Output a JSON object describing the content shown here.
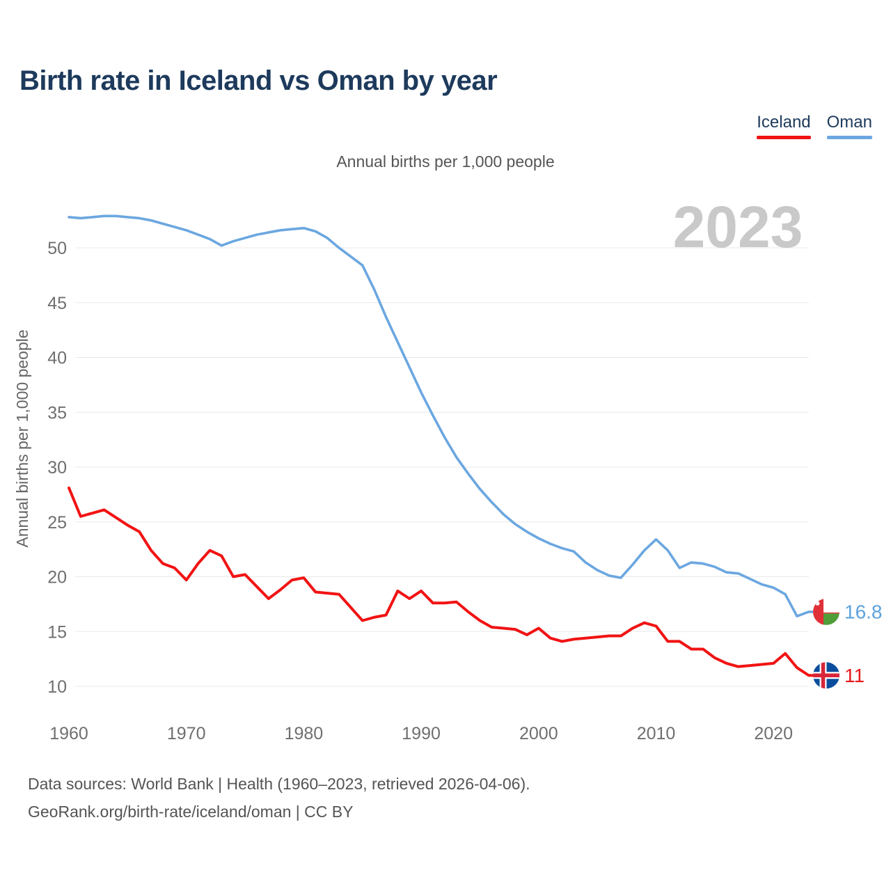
{
  "page": {
    "title": "Birth rate in Iceland vs Oman by year",
    "subtitle": "Annual births per 1,000 people",
    "y_axis_label": "Annual births per 1,000 people",
    "watermark": "2023",
    "footer_line1": "Data sources: World Bank | Health (1960–2023, retrieved 2026-04-06).",
    "footer_line2": "GeoRank.org/birth-rate/iceland/oman | CC BY"
  },
  "legend": {
    "items": [
      {
        "label": "Iceland",
        "color": "#f11313"
      },
      {
        "label": "Oman",
        "color": "#6ba7e0"
      }
    ]
  },
  "colors": {
    "iceland_line": "#f11313",
    "oman_line": "#6ba7e0",
    "iceland_end_label": "#e8181c",
    "oman_end_label": "#5ea2dc",
    "gridline": "#e8e8e8",
    "tick_text": "#6f6f6f",
    "title_text": "#1d3a5c",
    "watermark_text": "#c9c9c9"
  },
  "end_labels": [
    {
      "series": "Oman",
      "text": "16.8",
      "flag": "oman"
    },
    {
      "series": "Iceland",
      "text": "11",
      "flag": "iceland"
    }
  ],
  "chart_data": {
    "type": "line",
    "title": "Birth rate in Iceland vs Oman by year",
    "subtitle": "Annual births per 1,000 people",
    "xlabel": "",
    "ylabel": "Annual births per 1,000 people",
    "grid": "horizontal",
    "legend_position": "top-right",
    "xticks": [
      1960,
      1970,
      1980,
      1990,
      2000,
      2010,
      2020
    ],
    "yticks": [
      10,
      15,
      20,
      25,
      30,
      35,
      40,
      45,
      50
    ],
    "ylim": [
      10,
      54
    ],
    "x": [
      1960,
      1961,
      1962,
      1963,
      1964,
      1965,
      1966,
      1967,
      1968,
      1969,
      1970,
      1971,
      1972,
      1973,
      1974,
      1975,
      1976,
      1977,
      1978,
      1979,
      1980,
      1981,
      1982,
      1983,
      1984,
      1985,
      1986,
      1987,
      1988,
      1989,
      1990,
      1991,
      1992,
      1993,
      1994,
      1995,
      1996,
      1997,
      1998,
      1999,
      2000,
      2001,
      2002,
      2003,
      2004,
      2005,
      2006,
      2007,
      2008,
      2009,
      2010,
      2011,
      2012,
      2013,
      2014,
      2015,
      2016,
      2017,
      2018,
      2019,
      2020,
      2021,
      2022,
      2023
    ],
    "series": [
      {
        "name": "Oman",
        "color": "#6ba7e0",
        "end_value_label": "16.8",
        "values": [
          52.8,
          52.7,
          52.8,
          52.9,
          52.9,
          52.8,
          52.7,
          52.5,
          52.2,
          51.9,
          51.6,
          51.2,
          50.8,
          50.2,
          50.6,
          50.9,
          51.2,
          51.4,
          51.6,
          51.7,
          51.8,
          51.5,
          50.9,
          50.0,
          49.2,
          48.4,
          46.2,
          43.7,
          41.4,
          39.1,
          36.8,
          34.7,
          32.7,
          30.9,
          29.4,
          28.0,
          26.8,
          25.7,
          24.8,
          24.1,
          23.5,
          23.0,
          22.6,
          22.3,
          21.3,
          20.6,
          20.1,
          19.9,
          21.1,
          22.4,
          23.4,
          22.4,
          20.8,
          21.3,
          21.2,
          20.9,
          20.4,
          20.3,
          19.8,
          19.3,
          19.0,
          18.4,
          16.4,
          16.8
        ]
      },
      {
        "name": "Iceland",
        "color": "#f11313",
        "end_value_label": "11",
        "values": [
          28.1,
          25.5,
          25.8,
          26.1,
          25.4,
          24.7,
          24.1,
          22.4,
          21.2,
          20.8,
          19.7,
          21.2,
          22.4,
          21.9,
          20.0,
          20.2,
          19.1,
          18.0,
          18.8,
          19.7,
          19.9,
          18.6,
          18.5,
          18.4,
          17.2,
          16.0,
          16.3,
          16.5,
          18.7,
          18.0,
          18.7,
          17.6,
          17.6,
          17.7,
          16.8,
          16.0,
          15.4,
          15.3,
          15.2,
          14.7,
          15.3,
          14.4,
          14.1,
          14.3,
          14.4,
          14.5,
          14.6,
          14.6,
          15.3,
          15.8,
          15.5,
          14.1,
          14.1,
          13.4,
          13.4,
          12.6,
          12.1,
          11.8,
          11.9,
          12.0,
          12.1,
          13.0,
          11.7,
          11.0
        ]
      }
    ]
  }
}
